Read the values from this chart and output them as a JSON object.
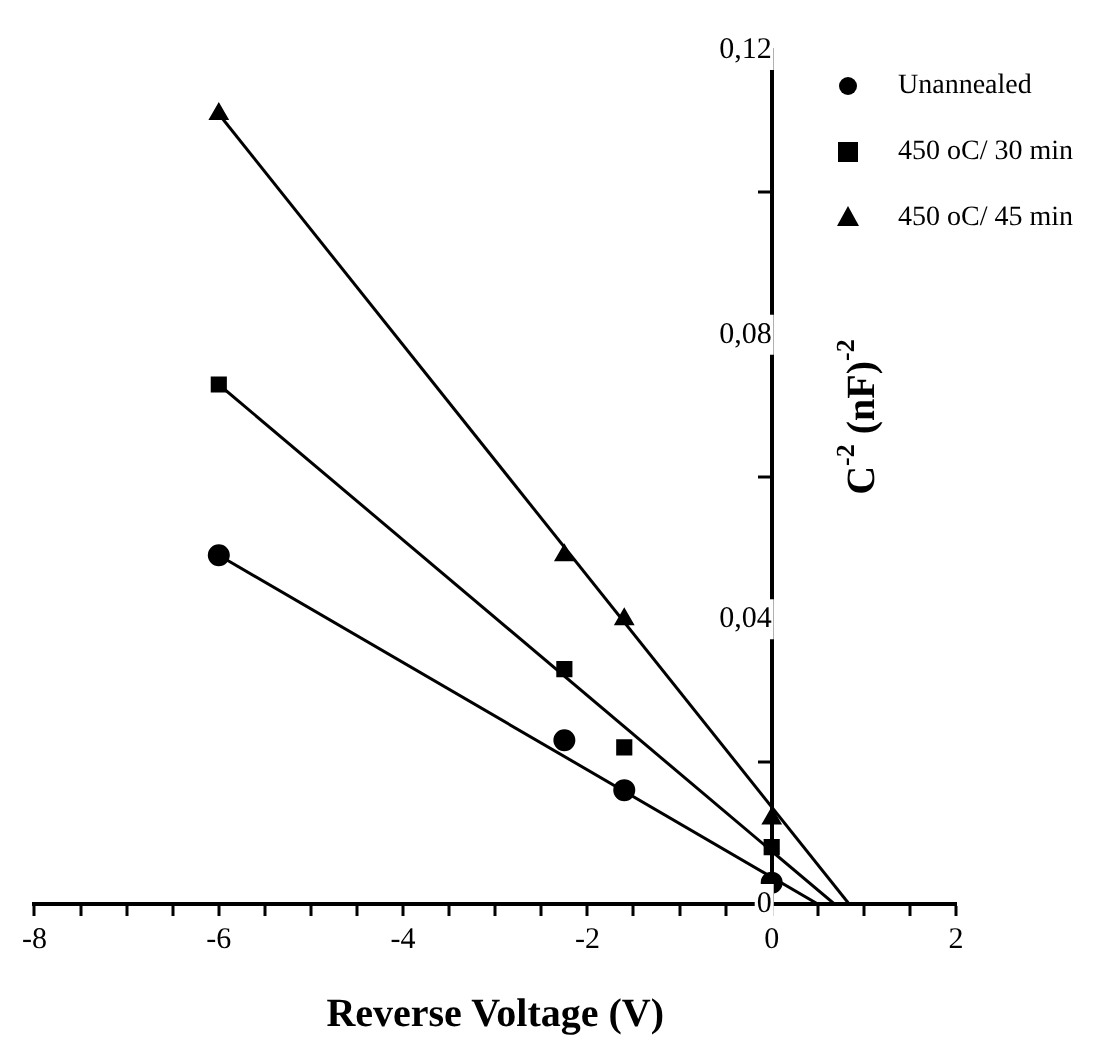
{
  "chart_data": {
    "type": "scatter",
    "xlabel": "Reverse Voltage (V)",
    "ylabel": "C$^{-2}$ (nF)$^{-2}$",
    "xlim": [
      -8,
      2
    ],
    "xticks": [
      -8,
      {
        "value": -7.5,
        "label": null
      },
      {
        "value": -7,
        "label": null
      },
      {
        "value": -6.5,
        "label": null
      },
      -6,
      {
        "value": -5.5,
        "label": null
      },
      {
        "value": -5,
        "label": null
      },
      {
        "value": -4.5,
        "label": null
      },
      -4,
      {
        "value": -3.5,
        "label": null
      },
      {
        "value": -3,
        "label": null
      },
      {
        "value": -2.5,
        "label": null
      },
      -2,
      {
        "value": -1.5,
        "label": null
      },
      {
        "value": -1,
        "label": null
      },
      {
        "value": -0.5,
        "label": null
      },
      0,
      {
        "value": 0.5,
        "label": null
      },
      {
        "value": 1,
        "label": null
      },
      {
        "value": 1.5,
        "label": null
      },
      2
    ],
    "ylim": [
      0,
      0.12
    ],
    "yticks": [
      {
        "value": 0,
        "label": "0"
      },
      {
        "value": 0.02,
        "label": null
      },
      {
        "value": 0.04,
        "label": "0,04"
      },
      {
        "value": 0.06,
        "label": null
      },
      {
        "value": 0.08,
        "label": "0,08"
      },
      {
        "value": 0.1,
        "label": null
      },
      {
        "value": 0.12,
        "label": "0,12"
      }
    ],
    "legend": "top right",
    "series": [
      {
        "name": "Unannealed",
        "type": "scatter",
        "marker": "circle",
        "color": "#000000",
        "x": [
          -6,
          -2.25,
          -1.6,
          0
        ],
        "values": [
          0.049,
          0.023,
          0.016,
          0.003
        ]
      },
      {
        "name": "450 oC/ 30 min",
        "type": "scatter",
        "marker": "square",
        "color": "#000000",
        "x": [
          -6,
          -2.25,
          -1.6,
          0
        ],
        "values": [
          0.073,
          0.033,
          0.022,
          0.008
        ]
      },
      {
        "name": "450 oC/ 45 min",
        "type": "scatter",
        "marker": "triangle",
        "color": "#000000",
        "x": [
          -6,
          -2.25,
          -1.6,
          0
        ],
        "values": [
          0.111,
          0.049,
          0.04,
          0.012
        ]
      },
      {
        "type": "line",
        "marker": "none",
        "line_style": "solid",
        "color": "#000000",
        "x": [
          -6,
          0.5
        ],
        "values": [
          0.049,
          0
        ]
      },
      {
        "type": "line",
        "marker": "none",
        "line_style": "solid",
        "color": "#000000",
        "x": [
          -6,
          0.68
        ],
        "values": [
          0.073,
          0
        ]
      },
      {
        "type": "line",
        "marker": "none",
        "line_style": "solid",
        "color": "#000000",
        "x": [
          -6,
          0.84
        ],
        "values": [
          0.111,
          0
        ]
      }
    ]
  }
}
